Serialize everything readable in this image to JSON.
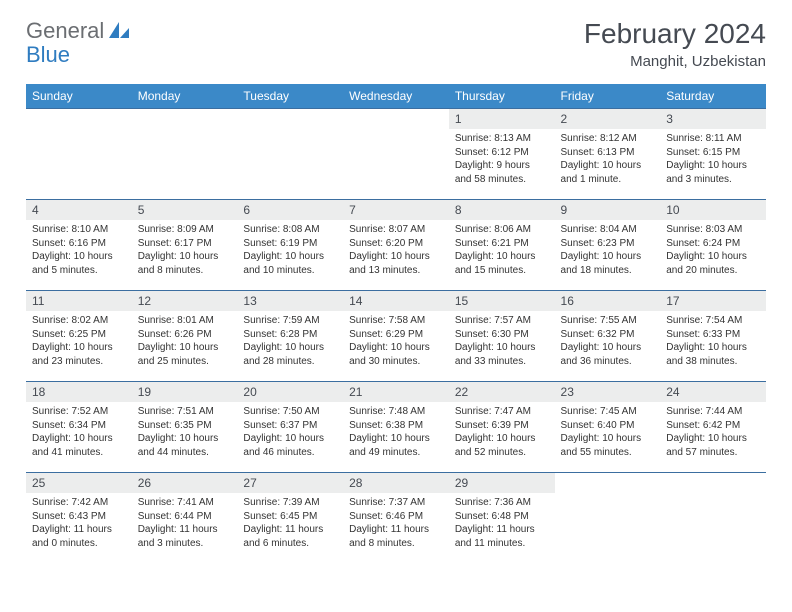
{
  "brand": {
    "word1": "General",
    "word2": "Blue"
  },
  "title": "February 2024",
  "location": "Manghit, Uzbekistan",
  "style": {
    "header_bg": "#3b89c8",
    "header_fg": "#ffffff",
    "daynum_bg": "#eceded",
    "border_color": "#3b6ea0",
    "title_color": "#454a52",
    "logo_gray": "#6b6e72",
    "logo_blue": "#2f7cc0",
    "page_bg": "#ffffff",
    "text_color": "#333333",
    "month_title_fontsize": 28,
    "location_fontsize": 15,
    "dayheader_fontsize": 12,
    "daynum_fontsize": 12,
    "cell_fontsize": 10
  },
  "weekdays": [
    "Sunday",
    "Monday",
    "Tuesday",
    "Wednesday",
    "Thursday",
    "Friday",
    "Saturday"
  ],
  "weeks": [
    [
      null,
      null,
      null,
      null,
      {
        "n": "1",
        "sr": "8:13 AM",
        "ss": "6:12 PM",
        "dl": "9 hours and 58 minutes."
      },
      {
        "n": "2",
        "sr": "8:12 AM",
        "ss": "6:13 PM",
        "dl": "10 hours and 1 minute."
      },
      {
        "n": "3",
        "sr": "8:11 AM",
        "ss": "6:15 PM",
        "dl": "10 hours and 3 minutes."
      }
    ],
    [
      {
        "n": "4",
        "sr": "8:10 AM",
        "ss": "6:16 PM",
        "dl": "10 hours and 5 minutes."
      },
      {
        "n": "5",
        "sr": "8:09 AM",
        "ss": "6:17 PM",
        "dl": "10 hours and 8 minutes."
      },
      {
        "n": "6",
        "sr": "8:08 AM",
        "ss": "6:19 PM",
        "dl": "10 hours and 10 minutes."
      },
      {
        "n": "7",
        "sr": "8:07 AM",
        "ss": "6:20 PM",
        "dl": "10 hours and 13 minutes."
      },
      {
        "n": "8",
        "sr": "8:06 AM",
        "ss": "6:21 PM",
        "dl": "10 hours and 15 minutes."
      },
      {
        "n": "9",
        "sr": "8:04 AM",
        "ss": "6:23 PM",
        "dl": "10 hours and 18 minutes."
      },
      {
        "n": "10",
        "sr": "8:03 AM",
        "ss": "6:24 PM",
        "dl": "10 hours and 20 minutes."
      }
    ],
    [
      {
        "n": "11",
        "sr": "8:02 AM",
        "ss": "6:25 PM",
        "dl": "10 hours and 23 minutes."
      },
      {
        "n": "12",
        "sr": "8:01 AM",
        "ss": "6:26 PM",
        "dl": "10 hours and 25 minutes."
      },
      {
        "n": "13",
        "sr": "7:59 AM",
        "ss": "6:28 PM",
        "dl": "10 hours and 28 minutes."
      },
      {
        "n": "14",
        "sr": "7:58 AM",
        "ss": "6:29 PM",
        "dl": "10 hours and 30 minutes."
      },
      {
        "n": "15",
        "sr": "7:57 AM",
        "ss": "6:30 PM",
        "dl": "10 hours and 33 minutes."
      },
      {
        "n": "16",
        "sr": "7:55 AM",
        "ss": "6:32 PM",
        "dl": "10 hours and 36 minutes."
      },
      {
        "n": "17",
        "sr": "7:54 AM",
        "ss": "6:33 PM",
        "dl": "10 hours and 38 minutes."
      }
    ],
    [
      {
        "n": "18",
        "sr": "7:52 AM",
        "ss": "6:34 PM",
        "dl": "10 hours and 41 minutes."
      },
      {
        "n": "19",
        "sr": "7:51 AM",
        "ss": "6:35 PM",
        "dl": "10 hours and 44 minutes."
      },
      {
        "n": "20",
        "sr": "7:50 AM",
        "ss": "6:37 PM",
        "dl": "10 hours and 46 minutes."
      },
      {
        "n": "21",
        "sr": "7:48 AM",
        "ss": "6:38 PM",
        "dl": "10 hours and 49 minutes."
      },
      {
        "n": "22",
        "sr": "7:47 AM",
        "ss": "6:39 PM",
        "dl": "10 hours and 52 minutes."
      },
      {
        "n": "23",
        "sr": "7:45 AM",
        "ss": "6:40 PM",
        "dl": "10 hours and 55 minutes."
      },
      {
        "n": "24",
        "sr": "7:44 AM",
        "ss": "6:42 PM",
        "dl": "10 hours and 57 minutes."
      }
    ],
    [
      {
        "n": "25",
        "sr": "7:42 AM",
        "ss": "6:43 PM",
        "dl": "11 hours and 0 minutes."
      },
      {
        "n": "26",
        "sr": "7:41 AM",
        "ss": "6:44 PM",
        "dl": "11 hours and 3 minutes."
      },
      {
        "n": "27",
        "sr": "7:39 AM",
        "ss": "6:45 PM",
        "dl": "11 hours and 6 minutes."
      },
      {
        "n": "28",
        "sr": "7:37 AM",
        "ss": "6:46 PM",
        "dl": "11 hours and 8 minutes."
      },
      {
        "n": "29",
        "sr": "7:36 AM",
        "ss": "6:48 PM",
        "dl": "11 hours and 11 minutes."
      },
      null,
      null
    ]
  ],
  "labels": {
    "sunrise": "Sunrise: ",
    "sunset": "Sunset: ",
    "daylight": "Daylight: "
  }
}
